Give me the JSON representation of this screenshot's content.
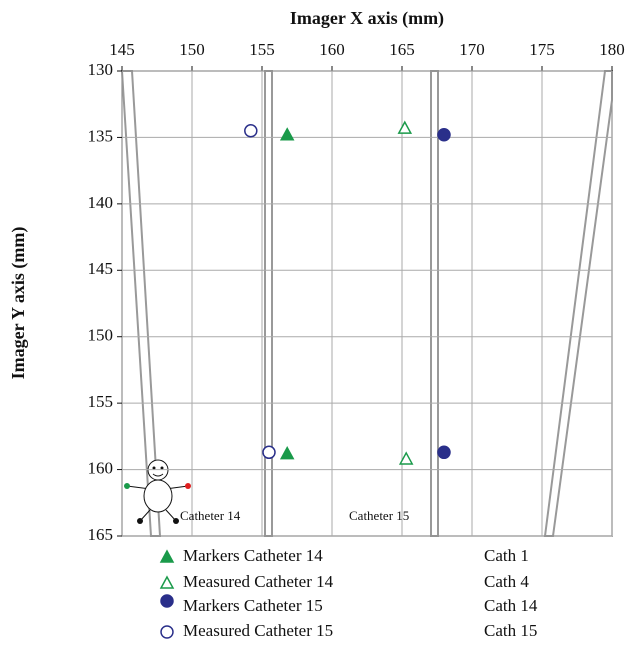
{
  "chart_data": {
    "type": "scatter",
    "x_label": "Imager X axis (mm)",
    "y_label": "Imager Y axis (mm)",
    "xlim": [
      145,
      180
    ],
    "ylim": [
      130,
      165
    ],
    "y_inverted": true,
    "x_axis_position": "top",
    "xticks": [
      145,
      150,
      155,
      160,
      165,
      170,
      175,
      180
    ],
    "yticks": [
      130,
      135,
      140,
      145,
      150,
      155,
      160,
      165
    ],
    "grid": true,
    "series": [
      {
        "name": "Markers Catheter 14",
        "color": "#1a9a4a",
        "marker": "triangle",
        "filled": true,
        "x": [
          156.8,
          156.8
        ],
        "values": [
          134.8,
          158.8
        ]
      },
      {
        "name": "Measured Catheter 14",
        "color": "#1a9a4a",
        "marker": "triangle",
        "filled": false,
        "x": [
          165.2,
          165.3
        ],
        "values": [
          134.3,
          159.2
        ]
      },
      {
        "name": "Markers Catheter 15",
        "color": "#2a2f8a",
        "marker": "circle",
        "filled": true,
        "x": [
          168.0,
          168.0
        ],
        "values": [
          134.8,
          158.7
        ]
      },
      {
        "name": "Measured Catheter 15",
        "color": "#2a2f8a",
        "marker": "circle",
        "filled": false,
        "x": [
          154.2,
          155.5
        ],
        "values": [
          134.5,
          158.7
        ]
      }
    ],
    "legend_notes": [
      "Cath 1",
      "Cath 4",
      "Cath 14",
      "Cath 15"
    ],
    "annotations": [
      "Catheter 14",
      "Catheter 15"
    ]
  }
}
